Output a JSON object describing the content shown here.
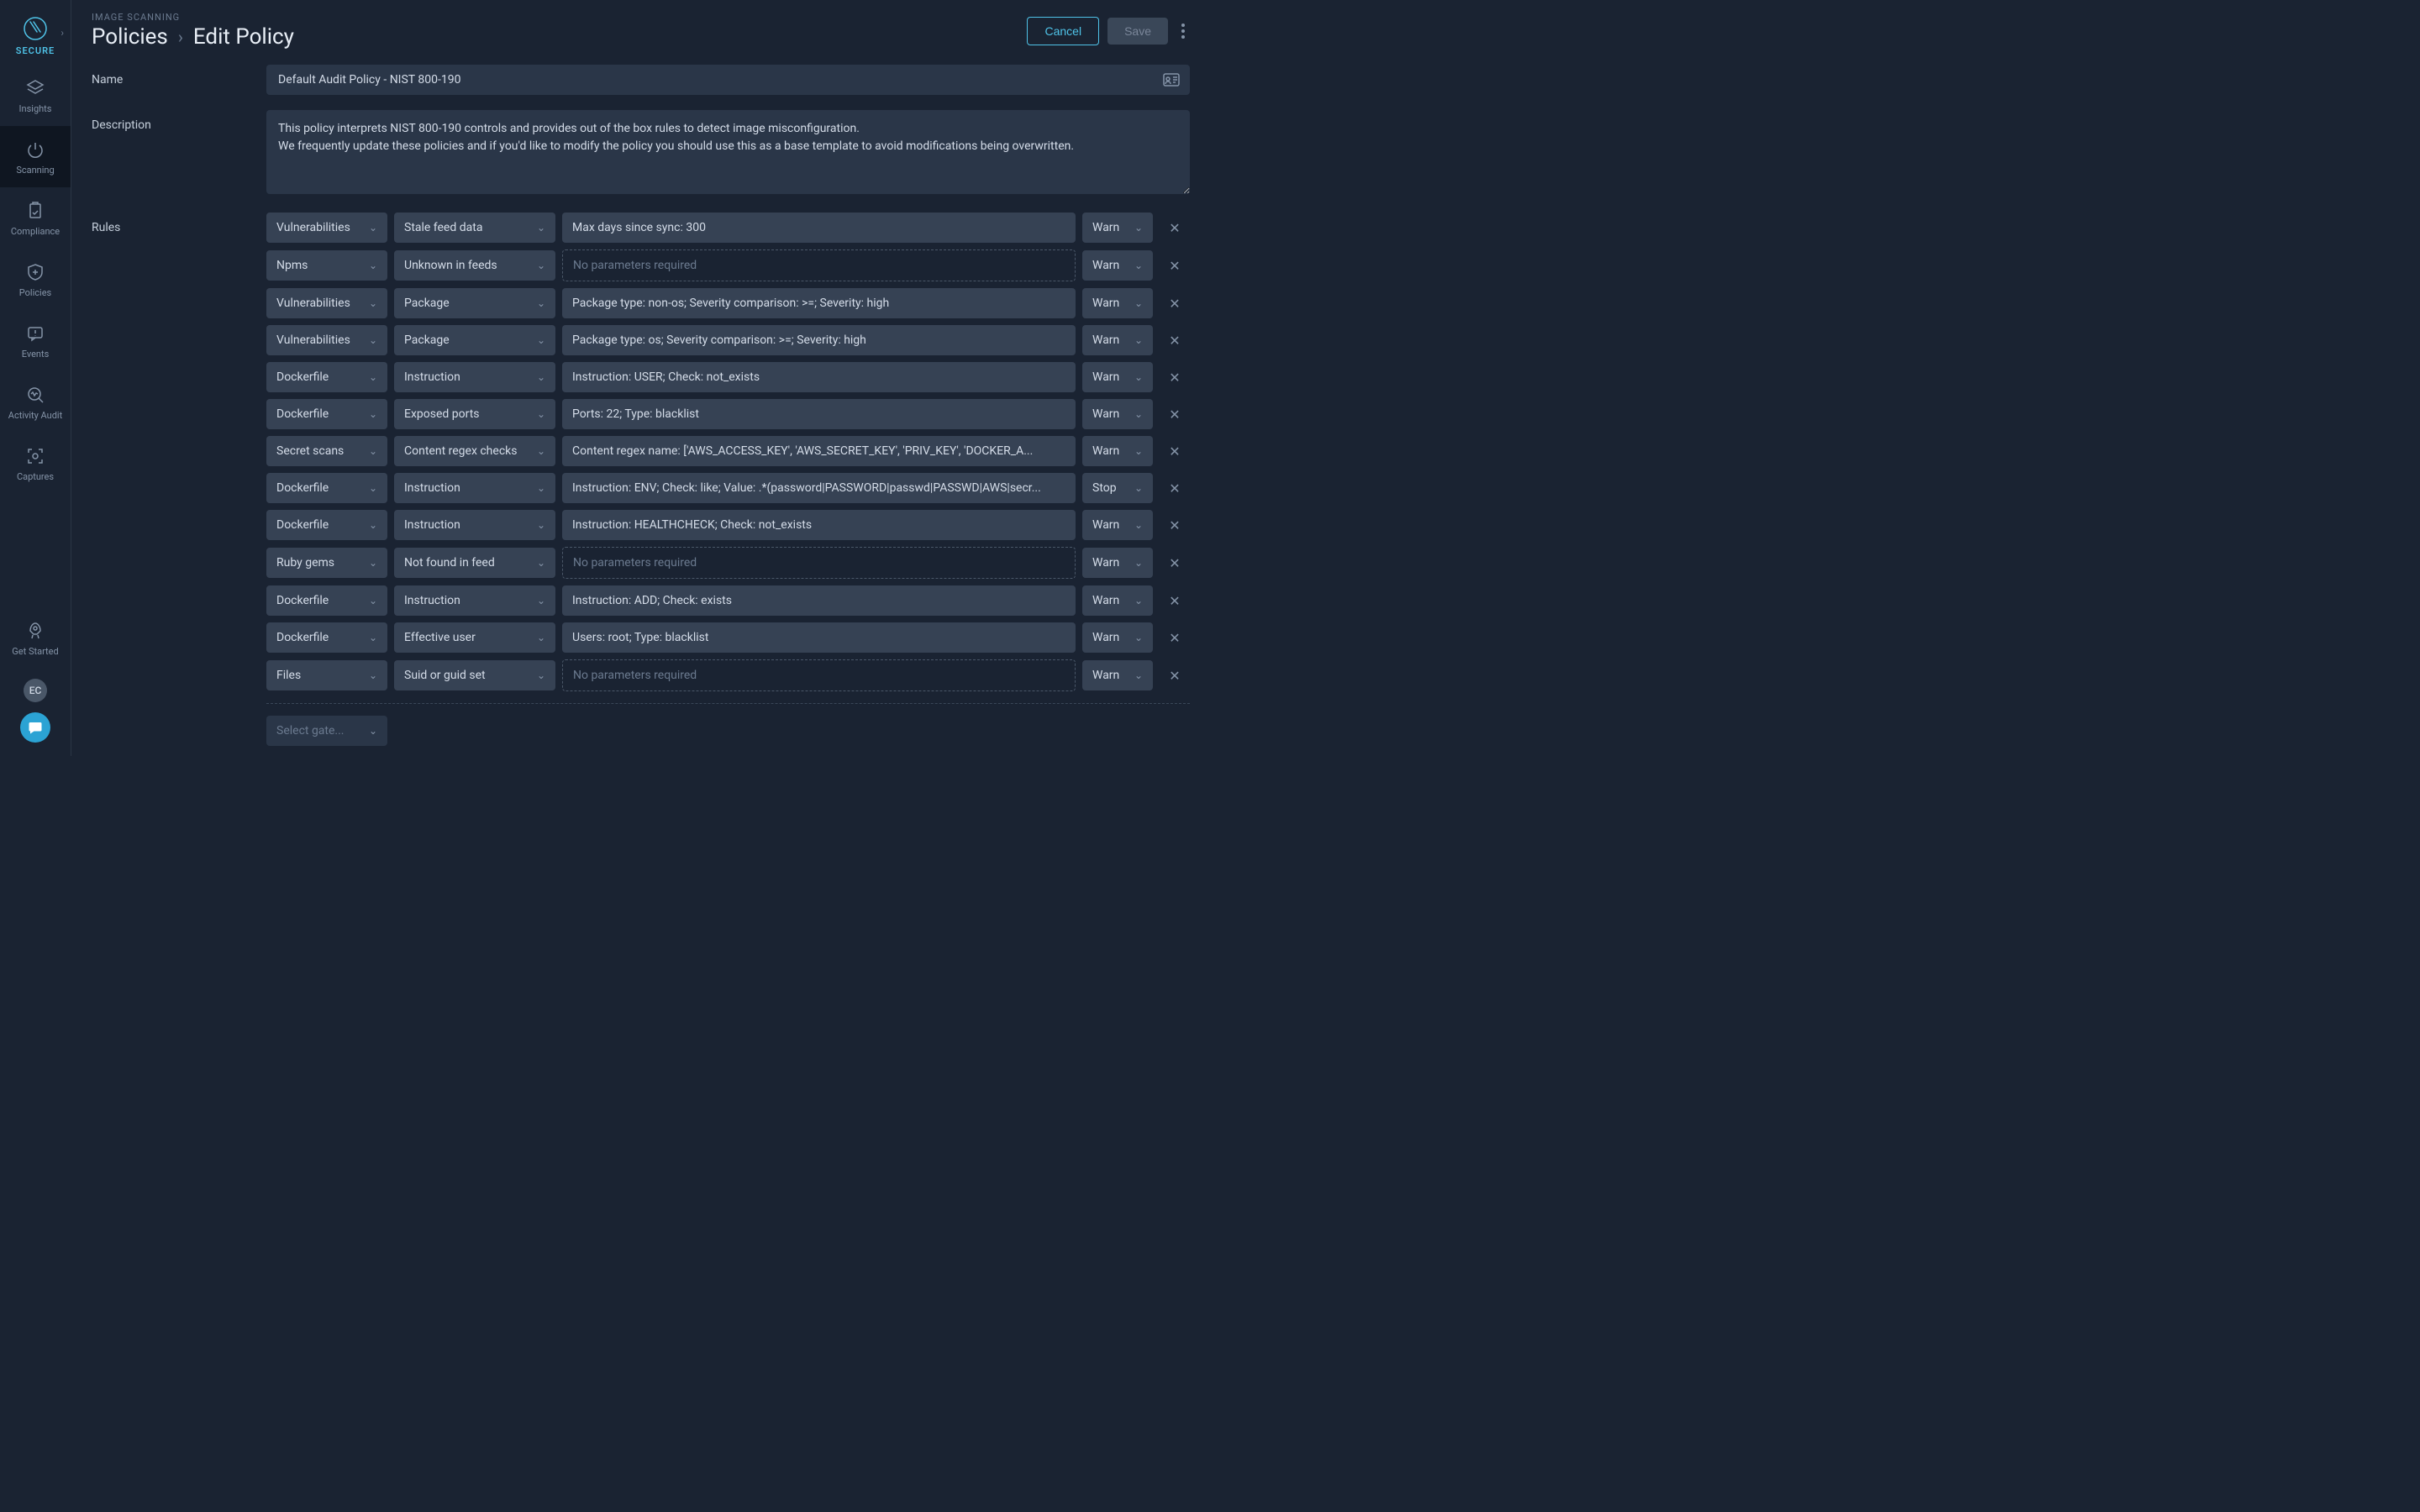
{
  "logo": {
    "text": "SECURE"
  },
  "sidebar": {
    "items": [
      {
        "label": "Insights"
      },
      {
        "label": "Scanning"
      },
      {
        "label": "Compliance"
      },
      {
        "label": "Policies"
      },
      {
        "label": "Events"
      },
      {
        "label": "Activity Audit"
      },
      {
        "label": "Captures"
      }
    ],
    "getStarted": "Get Started",
    "avatar": "EC"
  },
  "header": {
    "category": "IMAGE SCANNING",
    "parent": "Policies",
    "current": "Edit Policy",
    "cancel": "Cancel",
    "save": "Save"
  },
  "form": {
    "nameLabel": "Name",
    "nameValue": "Default Audit Policy - NIST 800-190",
    "descLabel": "Description",
    "descValue": "This policy interprets NIST 800-190 controls and provides out of the box rules to detect image misconfiguration.\nWe frequently update these policies and if you'd like to modify the policy you should use this as a base template to avoid modifications being overwritten.",
    "rulesLabel": "Rules",
    "selectGate": "Select gate...",
    "noParams": "No parameters required"
  },
  "rules": [
    {
      "gate": "Vulnerabilities",
      "trigger": "Stale feed data",
      "params": "Max days since sync: 300",
      "action": "Warn",
      "empty": false
    },
    {
      "gate": "Npms",
      "trigger": "Unknown in feeds",
      "params": "",
      "action": "Warn",
      "empty": true
    },
    {
      "gate": "Vulnerabilities",
      "trigger": "Package",
      "params": "Package type: non-os; Severity comparison: >=; Severity: high",
      "action": "Warn",
      "empty": false
    },
    {
      "gate": "Vulnerabilities",
      "trigger": "Package",
      "params": "Package type: os; Severity comparison: >=; Severity: high",
      "action": "Warn",
      "empty": false
    },
    {
      "gate": "Dockerfile",
      "trigger": "Instruction",
      "params": "Instruction: USER; Check: not_exists",
      "action": "Warn",
      "empty": false
    },
    {
      "gate": "Dockerfile",
      "trigger": "Exposed ports",
      "params": "Ports: 22; Type: blacklist",
      "action": "Warn",
      "empty": false
    },
    {
      "gate": "Secret scans",
      "trigger": "Content regex checks",
      "params": "Content regex name: ['AWS_ACCESS_KEY', 'AWS_SECRET_KEY', 'PRIV_KEY', 'DOCKER_A...",
      "action": "Warn",
      "empty": false
    },
    {
      "gate": "Dockerfile",
      "trigger": "Instruction",
      "params": "Instruction: ENV; Check: like; Value: .*(password|PASSWORD|passwd|PASSWD|AWS|secr...",
      "action": "Stop",
      "empty": false
    },
    {
      "gate": "Dockerfile",
      "trigger": "Instruction",
      "params": "Instruction: HEALTHCHECK; Check: not_exists",
      "action": "Warn",
      "empty": false
    },
    {
      "gate": "Ruby gems",
      "trigger": "Not found in feed",
      "params": "",
      "action": "Warn",
      "empty": true
    },
    {
      "gate": "Dockerfile",
      "trigger": "Instruction",
      "params": "Instruction: ADD; Check: exists",
      "action": "Warn",
      "empty": false
    },
    {
      "gate": "Dockerfile",
      "trigger": "Effective user",
      "params": "Users: root; Type: blacklist",
      "action": "Warn",
      "empty": false
    },
    {
      "gate": "Files",
      "trigger": "Suid or guid set",
      "params": "",
      "action": "Warn",
      "empty": true
    }
  ]
}
